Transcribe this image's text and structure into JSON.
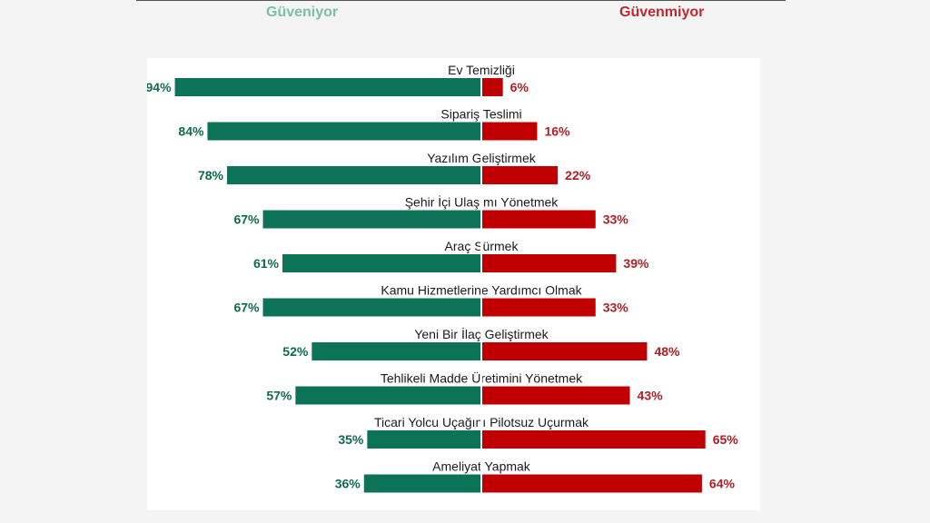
{
  "legend": {
    "trust": "Güveniyor",
    "distrust": "Güvenmiyor"
  },
  "colors": {
    "trust": "#0d7358",
    "distrust": "#c00000",
    "trust_text": "#0d6b50",
    "distrust_text": "#b01e24",
    "legend_trust": "#7bbfa8",
    "legend_distrust": "#c0282e"
  },
  "chart_data": {
    "type": "bar",
    "orientation": "horizontal-diverging",
    "title": "",
    "categories": [
      "Ev Temizliği",
      "Sipariş Teslimi",
      "Yazılım Geliştirmek",
      "Şehir İçi Ulaşımı Yönetmek",
      "Araç Sürmek",
      "Kamu Hizmetlerine Yardımcı Olmak",
      "Yeni Bir İlaç Geliştirmek",
      "Tehlikeli Madde Üretimini Yönetmek",
      "Ticari Yolcu Uçağını Pilotsuz Uçurmak",
      "Ameliyat Yapmak"
    ],
    "series": [
      {
        "name": "Güveniyor",
        "values": [
          94,
          84,
          78,
          67,
          61,
          67,
          52,
          57,
          35,
          36
        ]
      },
      {
        "name": "Güvenmiyor",
        "values": [
          6,
          16,
          22,
          33,
          39,
          33,
          48,
          43,
          65,
          64
        ]
      }
    ],
    "value_suffix": "%",
    "legend_position": "top",
    "grid": false
  }
}
